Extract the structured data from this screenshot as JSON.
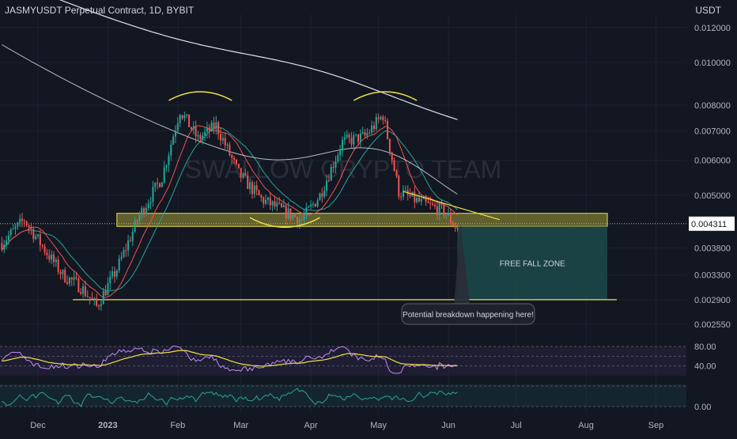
{
  "header": {
    "symbol_line": "JASMYUSDT Perpetual Contract, 1D, BYBIT",
    "currency": "USDT"
  },
  "watermark": "SWALLOW CRYPTO TEAM",
  "annotations": {
    "zone_label": "FREE FALL ZONE",
    "callout": "Potential breakdown happening here!"
  },
  "price_label": {
    "value": "0.004311"
  },
  "colors": {
    "background": "#131722",
    "up": "#26a69a",
    "down": "#ef5350",
    "support": "#f0e442",
    "ma200": "#e0e3eb",
    "ma50": "#ef5350",
    "ma20": "#26a69a",
    "rsi": "#c58af9",
    "rsi_ma": "#f0e442",
    "zone": "#1c4a4a"
  },
  "chart_data": [
    {
      "type": "line",
      "name": "price",
      "scale": "log",
      "x": [
        "Dec",
        "2023",
        "Feb",
        "Mar",
        "Apr",
        "May",
        "Jun",
        "Jul",
        "Aug",
        "Sep"
      ],
      "y_ticks": [
        "0.012000",
        "0.010000",
        "0.008000",
        "0.007000",
        "0.006000",
        "0.005000",
        "0.003800",
        "0.003300",
        "0.002900",
        "0.002550"
      ],
      "support_zone": [
        0.00425,
        0.00455
      ],
      "breakdown_target": 0.0029,
      "current_price": 0.004311,
      "price_path": [
        [
          "2022-11-15",
          0.0039
        ],
        [
          "2022-11-25",
          0.0044
        ],
        [
          "2022-12-05",
          0.0037
        ],
        [
          "2022-12-12",
          0.0033
        ],
        [
          "2022-12-20",
          0.0031
        ],
        [
          "2022-12-27",
          0.0028
        ],
        [
          "2023-01-05",
          0.0034
        ],
        [
          "2023-01-15",
          0.0045
        ],
        [
          "2023-01-25",
          0.0055
        ],
        [
          "2023-02-02",
          0.0078
        ],
        [
          "2023-02-10",
          0.0067
        ],
        [
          "2023-02-18",
          0.0072
        ],
        [
          "2023-02-28",
          0.0056
        ],
        [
          "2023-03-10",
          0.0049
        ],
        [
          "2023-03-20",
          0.0046
        ],
        [
          "2023-03-28",
          0.0044
        ],
        [
          "2023-04-05",
          0.005
        ],
        [
          "2023-04-15",
          0.0066
        ],
        [
          "2023-04-25",
          0.0068
        ],
        [
          "2023-05-03",
          0.0076
        ],
        [
          "2023-05-10",
          0.0051
        ],
        [
          "2023-05-20",
          0.0048
        ],
        [
          "2023-05-30",
          0.0046
        ],
        [
          "2023-06-05",
          0.0042
        ]
      ]
    },
    {
      "type": "line",
      "name": "RSI",
      "y_ticks": [
        "80.00",
        "40.00"
      ]
    },
    {
      "type": "area",
      "name": "oscillator",
      "y_ticks": [
        "0.00"
      ]
    }
  ]
}
